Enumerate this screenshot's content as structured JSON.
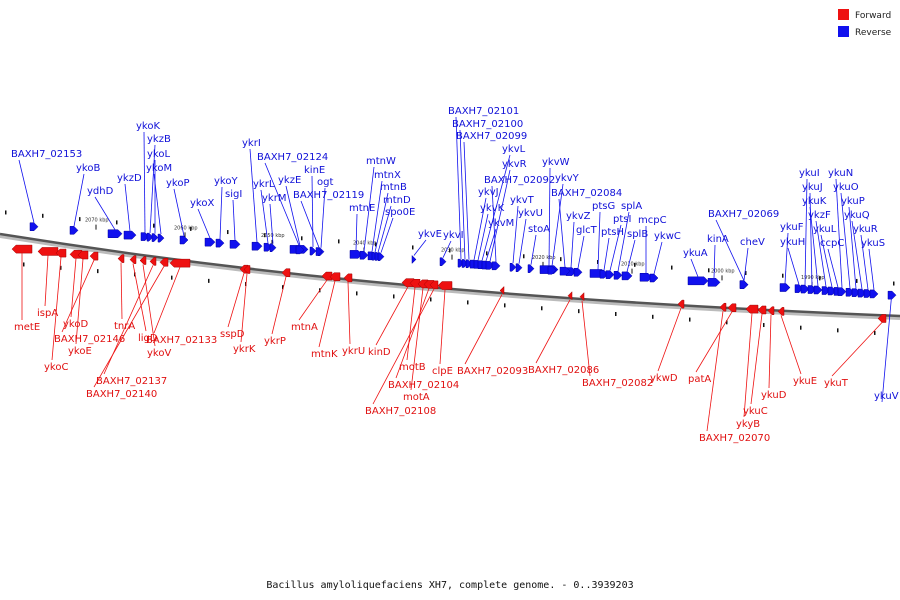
{
  "legend": {
    "forward": "Forward",
    "reverse": "Reverse"
  },
  "colors": {
    "forward": "#ee1111",
    "reverse": "#1111ee",
    "axis": "#555555"
  },
  "caption": "Bacillus amyloliquefaciens XH7, complete genome. - 0..3939203",
  "ticks": [
    "2070 kbp",
    "2060 kbp",
    "2050 kbp",
    "2040 kbp",
    "2030 kbp",
    "2020 kbp",
    "2010 kbp",
    "2000 kbp",
    "1990 kbp"
  ],
  "genes": {
    "reverse": [
      "BAXH7_02153",
      "ykoB",
      "ydhD",
      "ykzD",
      "ykoK",
      "ykzB",
      "ykoL",
      "ykoM",
      "ykoP",
      "ykoX",
      "ykoY",
      "sigI",
      "ykrI",
      "ykrL",
      "ykrM",
      "BAXH7_02124",
      "ykzE",
      "kinE",
      "ogt",
      "BAXH7_02119",
      "mtnE",
      "mtnW",
      "mtnX",
      "mtnB",
      "mtnD",
      "spo0E",
      "ykvE",
      "ykvI",
      "BAXH7_02101",
      "BAXH7_02100",
      "BAXH7_02099",
      "ykvJ",
      "ykvK",
      "ykvL",
      "ykvM",
      "ykvR",
      "BAXH7_02092",
      "ykvT",
      "ykvU",
      "stoA",
      "ykvW",
      "ykvY",
      "ykvZ",
      "glcT",
      "BAXH7_02084",
      "ptsG",
      "ptsH",
      "ptsI",
      "splA",
      "splB",
      "mcpC",
      "ykwC",
      "ykuA",
      "kinA",
      "BAXH7_02069",
      "cheV",
      "ykuF",
      "ykuH",
      "ykuI",
      "ykuJ",
      "ykuK",
      "ykzF",
      "ykuL",
      "ccpC",
      "ykuN",
      "ykuO",
      "ykuP",
      "ykuQ",
      "ykuR",
      "ykuS",
      "ykuV"
    ],
    "forward": [
      "metE",
      "ispA",
      "ykoC",
      "ykoD",
      "ykoE",
      "BAXH7_02146",
      "tnrA",
      "ligD",
      "ykoV",
      "BAXH7_02137",
      "BAXH7_02140",
      "BAXH7_02133",
      "sspD",
      "ykrK",
      "ykrP",
      "mtnA",
      "mtnK",
      "ykrU",
      "kinD",
      "motB",
      "motA",
      "BAXH7_02104",
      "BAXH7_02108",
      "clpE",
      "BAXH7_02093",
      "BAXH7_02086",
      "BAXH7_02082",
      "ykwD",
      "patA",
      "ykyB",
      "ykuC",
      "BAXH7_02070",
      "ykuD",
      "ykuE",
      "ykuT"
    ]
  }
}
